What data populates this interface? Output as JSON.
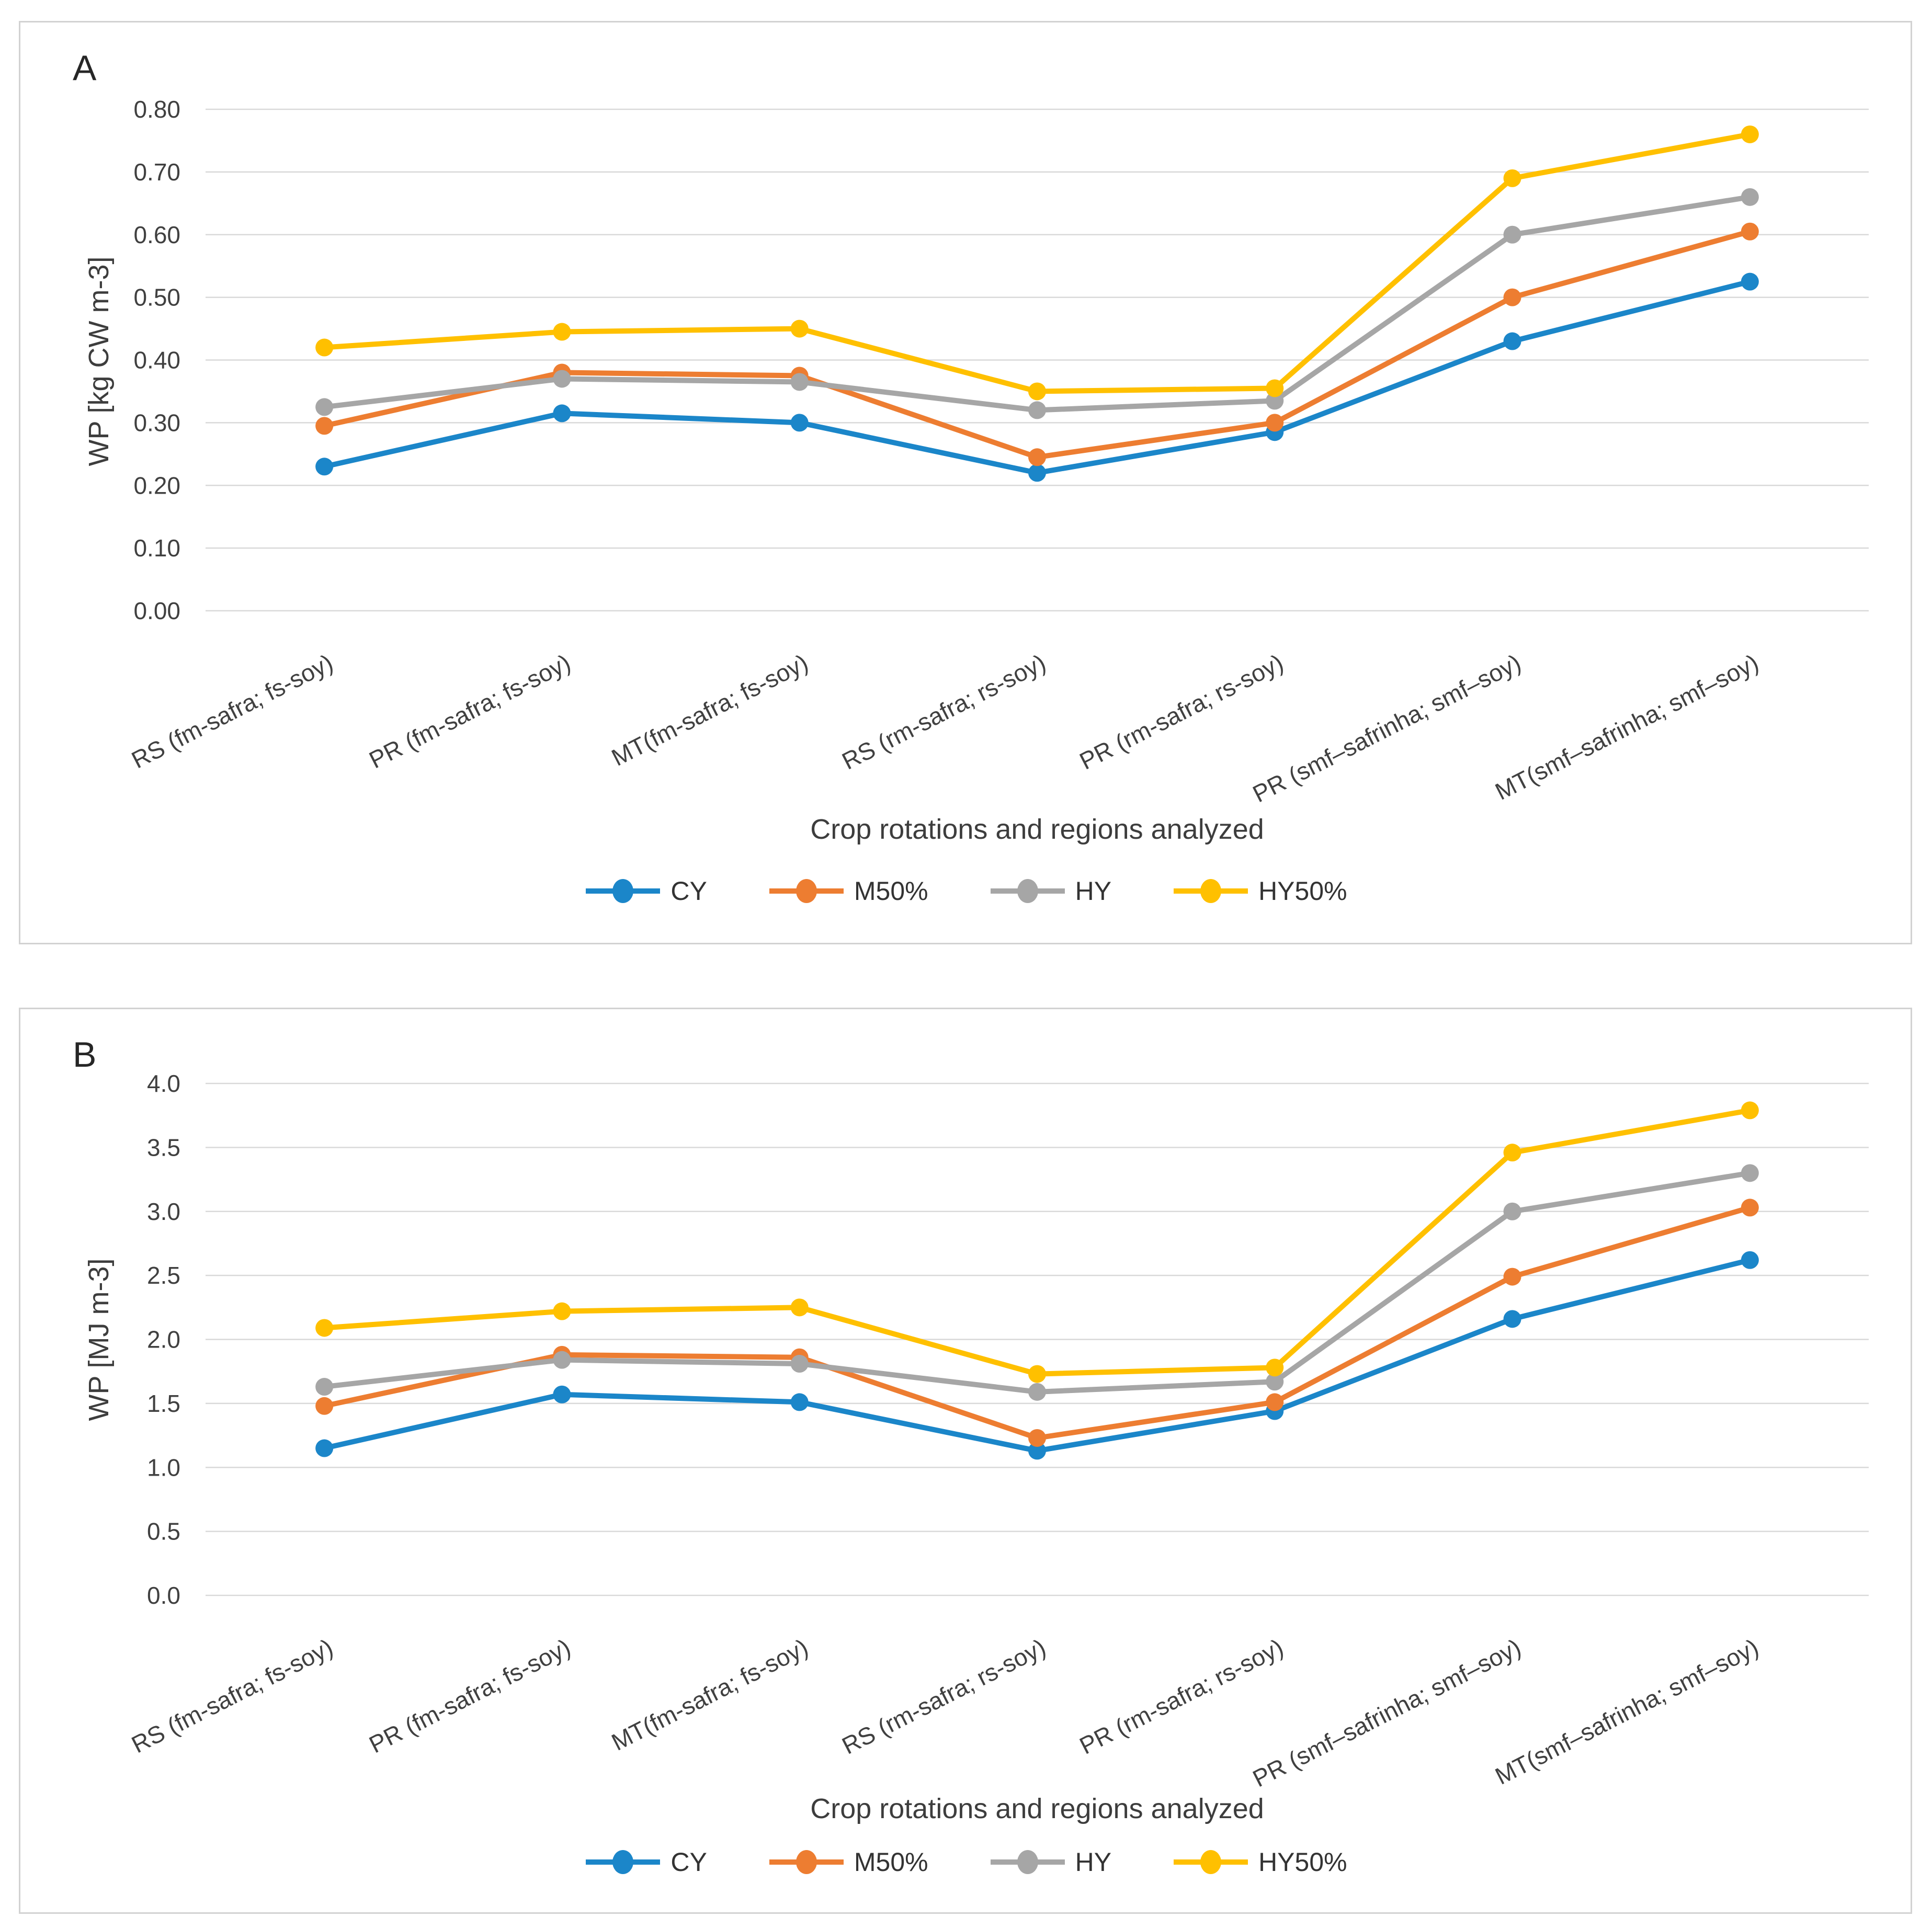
{
  "colors": {
    "blue": "#1B86C9",
    "orange": "#ED7D31",
    "gray": "#A6A6A6",
    "yellow": "#FFC000",
    "gridline": "#D9D9D9",
    "tick_text": "#404040",
    "panel_border": "#D2D2D2"
  },
  "chart_data": [
    {
      "type": "line",
      "panel_label": "A",
      "title": "",
      "xlabel": "Crop rotations and regions analyzed",
      "ylabel": "WP [kg CW m-3]",
      "categories": [
        "RS (fm-safra; fs-soy)",
        "PR (fm-safra; fs-soy)",
        "MT(fm-safra; fs-soy)",
        "RS (rm-safra; rs-soy)",
        "PR (rm-safra; rs-soy)",
        "PR (smf–safrinha; smf–soy)",
        "MT(smf–safrinha; smf–soy)"
      ],
      "series": [
        {
          "name": "CY",
          "color": "#1B86C9",
          "values": [
            0.23,
            0.315,
            0.3,
            0.22,
            0.285,
            0.43,
            0.525
          ]
        },
        {
          "name": "M50%",
          "color": "#ED7D31",
          "values": [
            0.295,
            0.38,
            0.375,
            0.245,
            0.3,
            0.5,
            0.605
          ]
        },
        {
          "name": "HY",
          "color": "#A6A6A6",
          "values": [
            0.325,
            0.37,
            0.365,
            0.32,
            0.335,
            0.6,
            0.66
          ]
        },
        {
          "name": "HY50%",
          "color": "#FFC000",
          "values": [
            0.42,
            0.445,
            0.45,
            0.35,
            0.355,
            0.69,
            0.76
          ]
        }
      ],
      "ylim": [
        0.0,
        0.8
      ],
      "ytick_step": 0.1,
      "tick_decimals": 2,
      "grid": true,
      "legend_position": "bottom"
    },
    {
      "type": "line",
      "panel_label": "B",
      "title": "",
      "xlabel": "Crop rotations and regions analyzed",
      "ylabel": "WP [MJ m-3]",
      "categories": [
        "RS (fm-safra; fs-soy)",
        "PR (fm-safra; fs-soy)",
        "MT(fm-safra; fs-soy)",
        "RS (rm-safra; rs-soy)",
        "PR (rm-safra; rs-soy)",
        "PR (smf–safrinha; smf–soy)",
        "MT(smf–safrinha; smf–soy)"
      ],
      "series": [
        {
          "name": "CY",
          "color": "#1B86C9",
          "values": [
            1.15,
            1.57,
            1.51,
            1.13,
            1.44,
            2.16,
            2.62
          ]
        },
        {
          "name": "M50%",
          "color": "#ED7D31",
          "values": [
            1.48,
            1.88,
            1.86,
            1.23,
            1.51,
            2.49,
            3.03
          ]
        },
        {
          "name": "HY",
          "color": "#A6A6A6",
          "values": [
            1.63,
            1.84,
            1.81,
            1.59,
            1.67,
            3.0,
            3.3
          ]
        },
        {
          "name": "HY50%",
          "color": "#FFC000",
          "values": [
            2.09,
            2.22,
            2.25,
            1.73,
            1.78,
            3.46,
            3.79
          ]
        }
      ],
      "ylim": [
        0.0,
        4.0
      ],
      "ytick_step": 0.5,
      "tick_decimals": 1,
      "grid": true,
      "legend_position": "bottom"
    }
  ]
}
